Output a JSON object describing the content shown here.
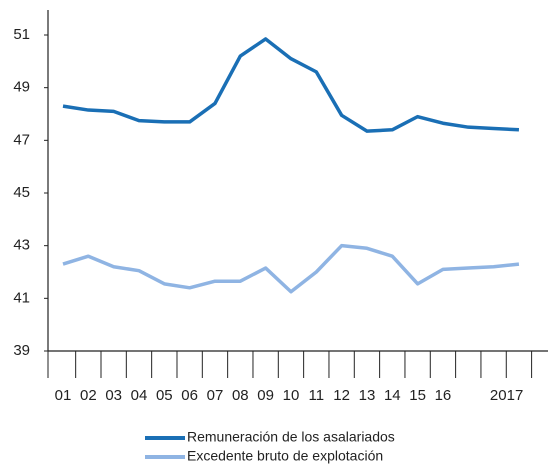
{
  "chart_data": {
    "type": "line",
    "categories": [
      "01",
      "02",
      "03",
      "04",
      "05",
      "06",
      "07",
      "08",
      "09",
      "10",
      "11",
      "12",
      "13",
      "14",
      "15",
      "16",
      null,
      "2017",
      null
    ],
    "series": [
      {
        "name": "Remuneración de los asalariados",
        "color": "#1a6fb5",
        "values": [
          48.3,
          48.15,
          48.1,
          47.75,
          47.7,
          47.7,
          48.4,
          50.2,
          50.85,
          50.1,
          49.6,
          47.95,
          47.35,
          47.4,
          47.9,
          47.65,
          47.5,
          47.45,
          47.4
        ]
      },
      {
        "name": "Excedente bruto de explotación",
        "color": "#8fb4e3",
        "values": [
          42.3,
          42.6,
          42.2,
          42.05,
          41.55,
          41.4,
          41.65,
          41.65,
          42.15,
          41.25,
          42.0,
          43.0,
          42.9,
          42.6,
          41.55,
          42.1,
          42.15,
          42.2,
          42.3
        ]
      }
    ],
    "ylim": [
      39,
      51
    ],
    "yticks": [
      39,
      41,
      43,
      45,
      47,
      49,
      51
    ],
    "grid": false
  }
}
